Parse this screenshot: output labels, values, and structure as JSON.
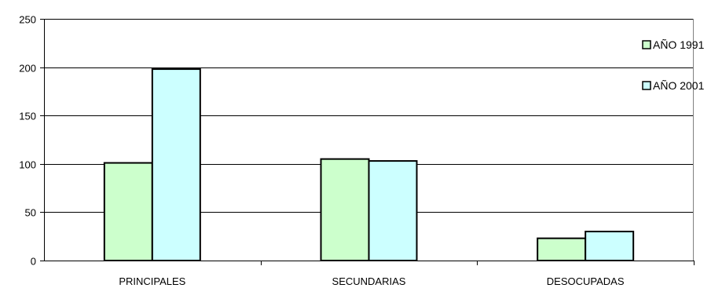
{
  "chart_data": {
    "type": "bar",
    "categories": [
      "PRINCIPALES",
      "SECUNDARIAS",
      "DESOCUPADAS"
    ],
    "series": [
      {
        "name": "AÑO 1991",
        "values": [
          101,
          105,
          23
        ],
        "color": "#ccffcc"
      },
      {
        "name": "AÑO 2001",
        "values": [
          198,
          103,
          30
        ],
        "color": "#ccffff"
      }
    ],
    "ylim": [
      0,
      250
    ],
    "yticks": [
      0,
      50,
      100,
      150,
      200,
      250
    ],
    "grid": true,
    "legend": "right",
    "title": "",
    "xlabel": "",
    "ylabel": ""
  }
}
